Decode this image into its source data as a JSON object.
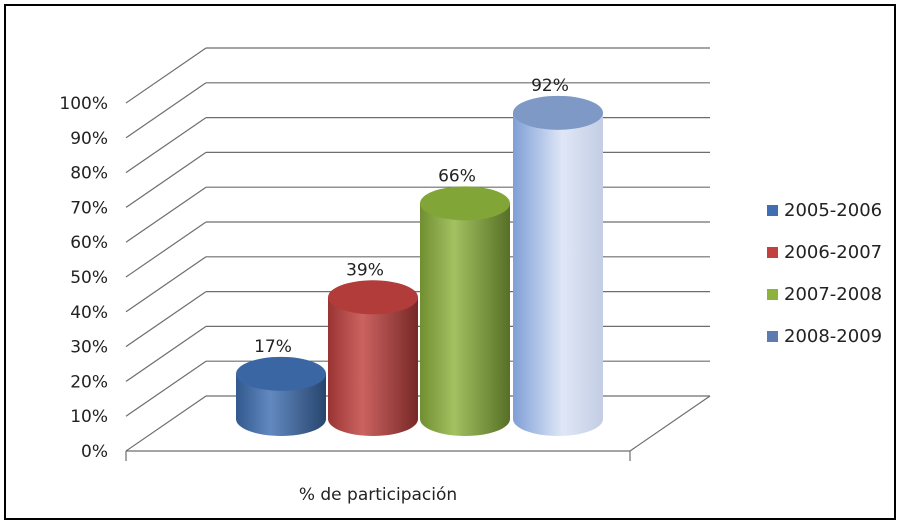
{
  "chart_data": {
    "type": "bar",
    "style": "3d-cylinder",
    "categories": [
      "% de participación"
    ],
    "series": [
      {
        "name": "2005-2006",
        "values": [
          0.17
        ],
        "label": "17%",
        "color": "#3f6fb2"
      },
      {
        "name": "2006-2007",
        "values": [
          0.39
        ],
        "label": "39%",
        "color": "#c0413e"
      },
      {
        "name": "2007-2008",
        "values": [
          0.66
        ],
        "label": "66%",
        "color": "#8db33d"
      },
      {
        "name": "2008-2009",
        "values": [
          0.92
        ],
        "label": "92%",
        "color": "#8faee0"
      }
    ],
    "y_ticks": [
      "0%",
      "10%",
      "20%",
      "30%",
      "40%",
      "50%",
      "60%",
      "70%",
      "80%",
      "90%",
      "100%"
    ],
    "ylim": [
      0,
      1
    ],
    "grid": true,
    "legend_position": "right",
    "title": "",
    "xlabel": "",
    "ylabel": ""
  }
}
